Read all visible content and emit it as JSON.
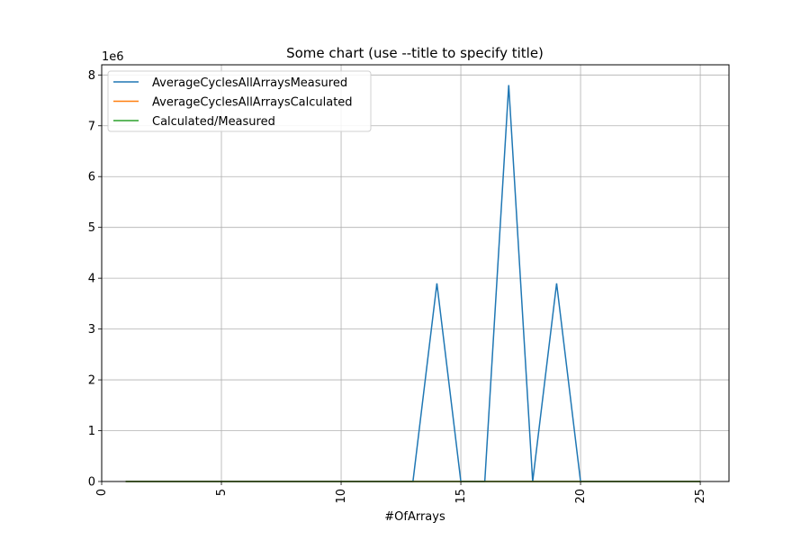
{
  "chart_data": {
    "type": "line",
    "title": "Some chart (use --title to specify title)",
    "xlabel": "#OfArrays",
    "ylabel": "",
    "y_offset_label": "1e6",
    "xlim": [
      0,
      26.2
    ],
    "ylim": [
      0,
      8.2
    ],
    "x_ticks": [
      0,
      5,
      10,
      15,
      20,
      25
    ],
    "y_ticks": [
      0,
      1,
      2,
      3,
      4,
      5,
      6,
      7,
      8
    ],
    "x_tick_labels": [
      "0",
      "5",
      "10",
      "15",
      "20",
      "25"
    ],
    "y_tick_labels": [
      "0",
      "1",
      "2",
      "3",
      "4",
      "5",
      "6",
      "7",
      "8"
    ],
    "grid": true,
    "legend_position": "top-left",
    "x": [
      1,
      2,
      3,
      4,
      5,
      6,
      7,
      8,
      9,
      10,
      11,
      12,
      13,
      14,
      15,
      16,
      17,
      18,
      19,
      20,
      21,
      22,
      23,
      24,
      25
    ],
    "series": [
      {
        "name": "AverageCyclesAllArraysMeasured",
        "color": "#1f77b4",
        "values": [
          0,
          0,
          0,
          0,
          0,
          0,
          0,
          0,
          0,
          0,
          0,
          0,
          0,
          3.9,
          0,
          0,
          7.8,
          0,
          3.9,
          0,
          0,
          0,
          0,
          0,
          0
        ]
      },
      {
        "name": "AverageCyclesAllArraysCalculated",
        "color": "#ff7f0e",
        "values": [
          0,
          0,
          0,
          0,
          0,
          0,
          0,
          0,
          0,
          0,
          0,
          0,
          0,
          0,
          0,
          0,
          0,
          0,
          0,
          0,
          0,
          0,
          0,
          0,
          0
        ]
      },
      {
        "name": "Calculated/Measured",
        "color": "#2ca02c",
        "values": [
          0,
          0,
          0,
          0,
          0,
          0,
          0,
          0,
          0,
          0,
          0,
          0,
          0,
          0,
          0,
          0,
          0,
          0,
          0,
          0,
          0,
          0,
          0,
          0,
          0
        ]
      }
    ]
  }
}
